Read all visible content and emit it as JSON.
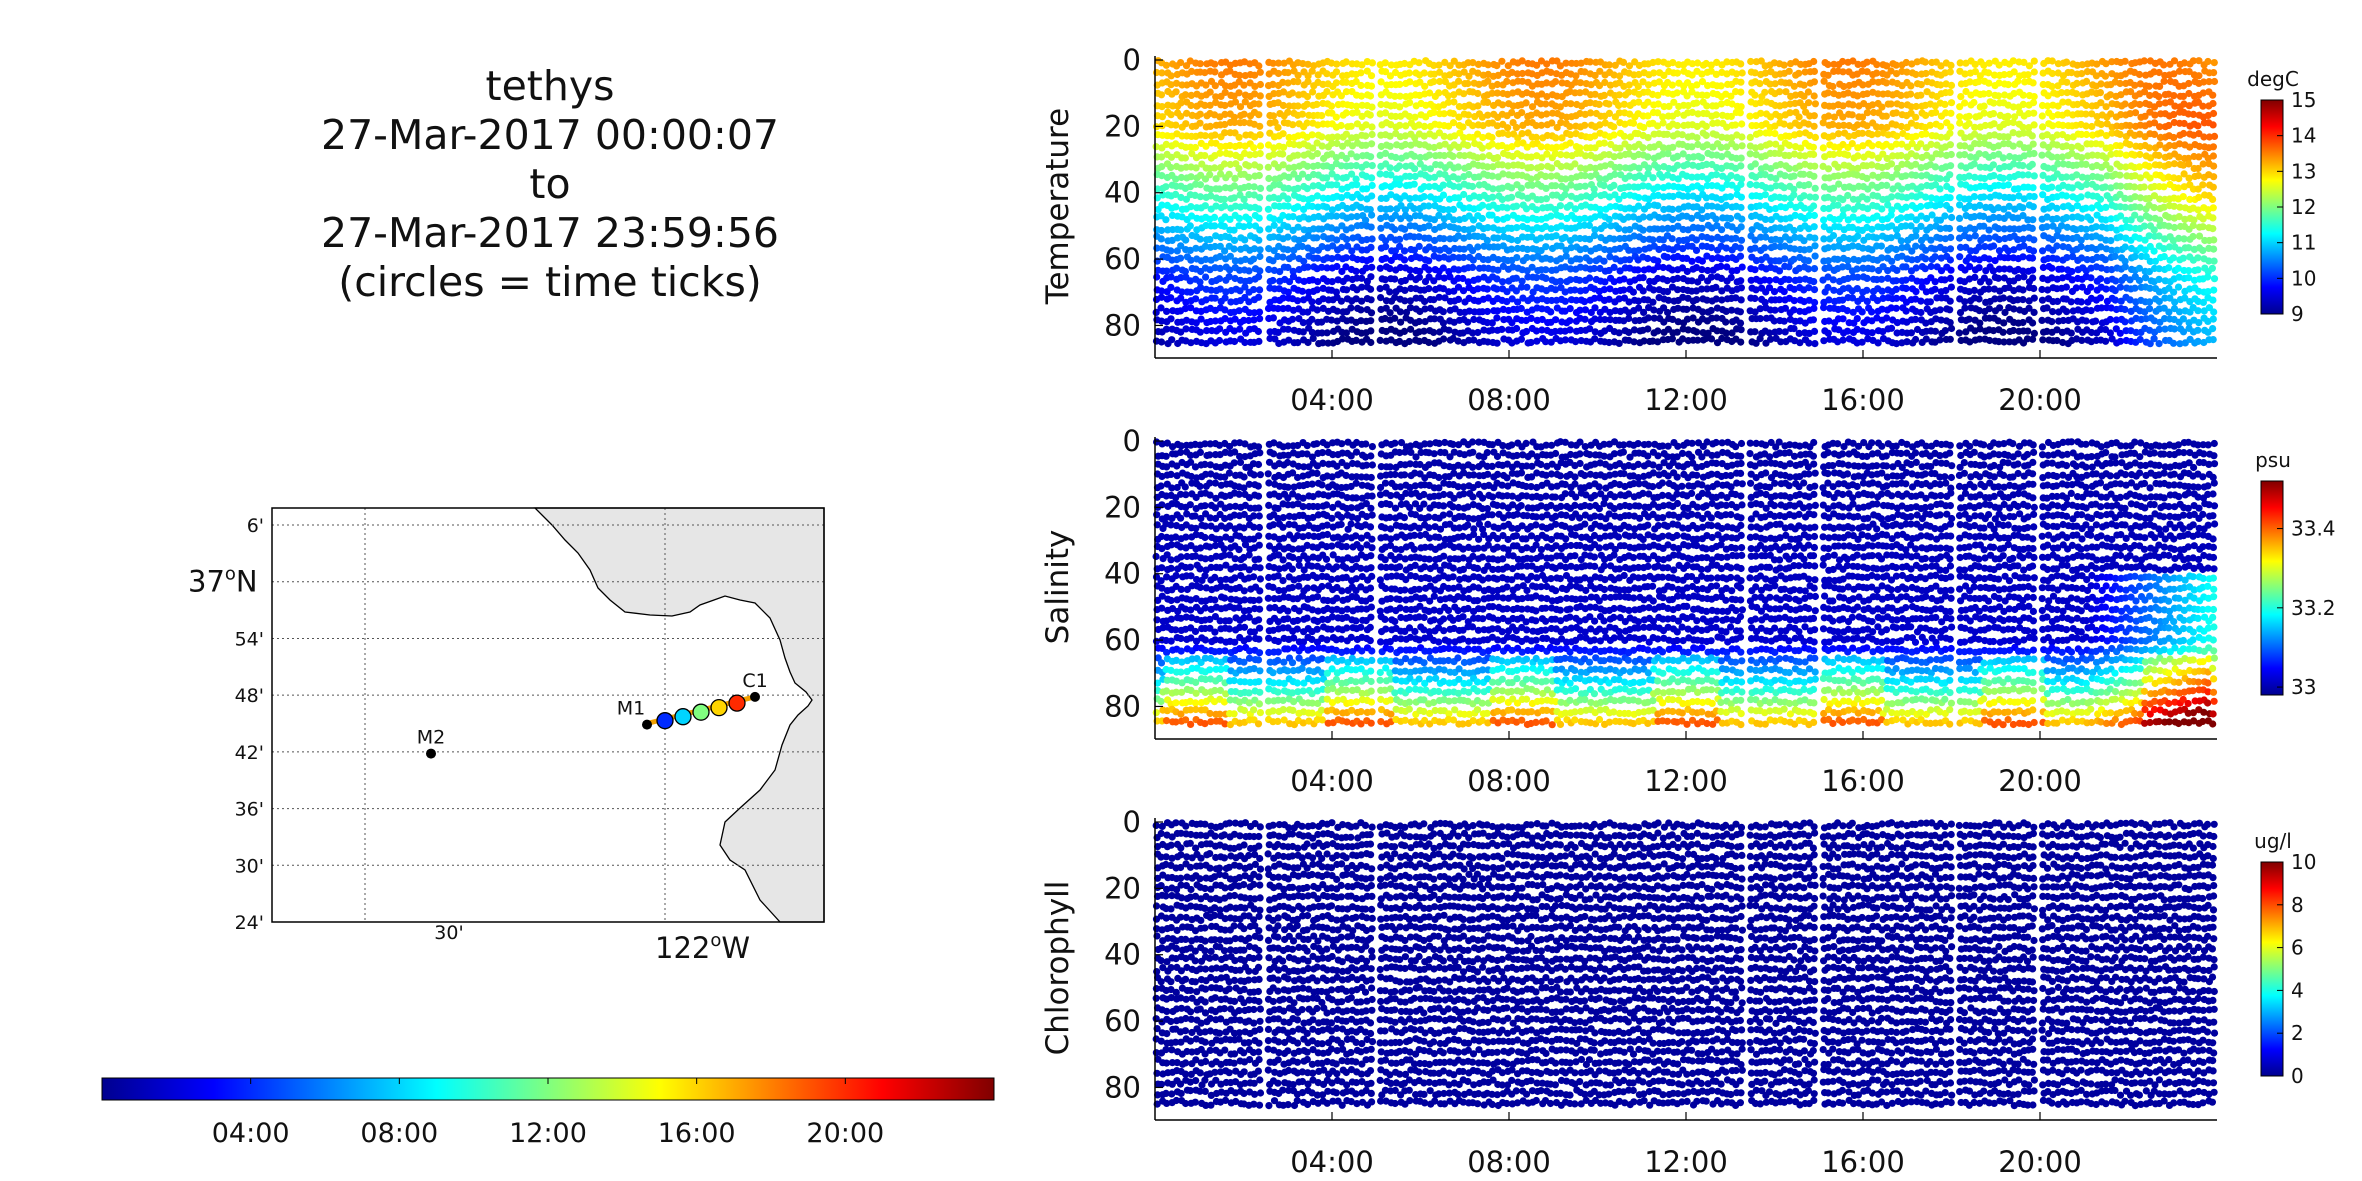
{
  "title": {
    "vehicle": "tethys",
    "start": "27-Mar-2017 00:00:07",
    "to": "to",
    "end": "27-Mar-2017 23:59:56",
    "note": "(circles = time ticks)"
  },
  "colormap": [
    "#00008f",
    "#0000ff",
    "#0080ff",
    "#00ffff",
    "#80ff80",
    "#ffff00",
    "#ff8000",
    "#ff0000",
    "#800000"
  ],
  "chart_data": [
    {
      "type": "scatter",
      "id": "temperature",
      "ylabel": "Temperature",
      "ylim": [
        88,
        0
      ],
      "yticks": [
        "0",
        "20",
        "40",
        "60",
        "80"
      ],
      "xlim_hours": [
        0,
        24
      ],
      "xticks": [
        "04:00",
        "08:00",
        "12:00",
        "16:00",
        "20:00"
      ],
      "colorbar": {
        "unit": "degC",
        "ticks": [
          "9",
          "10",
          "11",
          "12",
          "13",
          "14",
          "15"
        ],
        "range": [
          9,
          15
        ]
      },
      "profile": [
        {
          "depth_m": 0,
          "value": 13.2
        },
        {
          "depth_m": 20,
          "value": 12.9
        },
        {
          "depth_m": 35,
          "value": 11.8
        },
        {
          "depth_m": 50,
          "value": 10.8
        },
        {
          "depth_m": 65,
          "value": 9.8
        },
        {
          "depth_m": 85,
          "value": 9.2
        }
      ]
    },
    {
      "type": "scatter",
      "id": "salinity",
      "ylabel": "Salinity",
      "ylim": [
        88,
        0
      ],
      "yticks": [
        "0",
        "20",
        "40",
        "60",
        "80"
      ],
      "xlim_hours": [
        0,
        24
      ],
      "xticks": [
        "04:00",
        "08:00",
        "12:00",
        "16:00",
        "20:00"
      ],
      "colorbar": {
        "unit": "psu",
        "ticks": [
          "33",
          "33.2",
          "33.4"
        ],
        "range": [
          32.98,
          33.52
        ]
      },
      "profile": [
        {
          "depth_m": 0,
          "value": 33.0
        },
        {
          "depth_m": 60,
          "value": 33.02
        },
        {
          "depth_m": 75,
          "value": 33.2
        },
        {
          "depth_m": 85,
          "value": 33.35
        }
      ]
    },
    {
      "type": "scatter",
      "id": "chlorophyll",
      "ylabel": "Chlorophyll",
      "ylim": [
        88,
        0
      ],
      "yticks": [
        "0",
        "20",
        "40",
        "60",
        "80"
      ],
      "xlim_hours": [
        0,
        24
      ],
      "xticks": [
        "04:00",
        "08:00",
        "12:00",
        "16:00",
        "20:00"
      ],
      "colorbar": {
        "unit": "ug/l",
        "ticks": [
          "0",
          "2",
          "4",
          "6",
          "8",
          "10"
        ],
        "range": [
          0,
          10
        ]
      },
      "profile": [
        {
          "depth_m": 0,
          "value": 0.3
        },
        {
          "depth_m": 85,
          "value": 0.3
        }
      ]
    }
  ],
  "map": {
    "lat_ticks": [
      "6'",
      "54'",
      "48'",
      "42'",
      "36'",
      "30'",
      "24'"
    ],
    "lat_major": "37",
    "lat_major_unit": "o",
    "lat_major_suffix": "N",
    "lon_minor": "30'",
    "lon_major": "122",
    "lon_major_unit": "o",
    "lon_major_suffix": "W",
    "moorings": [
      {
        "name": "M1",
        "lat": 36.748,
        "lon": -122.03
      },
      {
        "name": "M2",
        "lat": 36.697,
        "lon": -122.39
      },
      {
        "name": "C1",
        "lat": 36.797,
        "lon": -121.85
      }
    ],
    "track_time_ticks": [
      {
        "hour": 4,
        "lat": 36.755,
        "lon": -122.0
      },
      {
        "hour": 8,
        "lat": 36.762,
        "lon": -121.97
      },
      {
        "hour": 12,
        "lat": 36.77,
        "lon": -121.94
      },
      {
        "hour": 16,
        "lat": 36.778,
        "lon": -121.91
      },
      {
        "hour": 20,
        "lat": 36.786,
        "lon": -121.88
      }
    ]
  },
  "time_colorbar": {
    "ticks": [
      "04:00",
      "08:00",
      "12:00",
      "16:00",
      "20:00"
    ]
  }
}
